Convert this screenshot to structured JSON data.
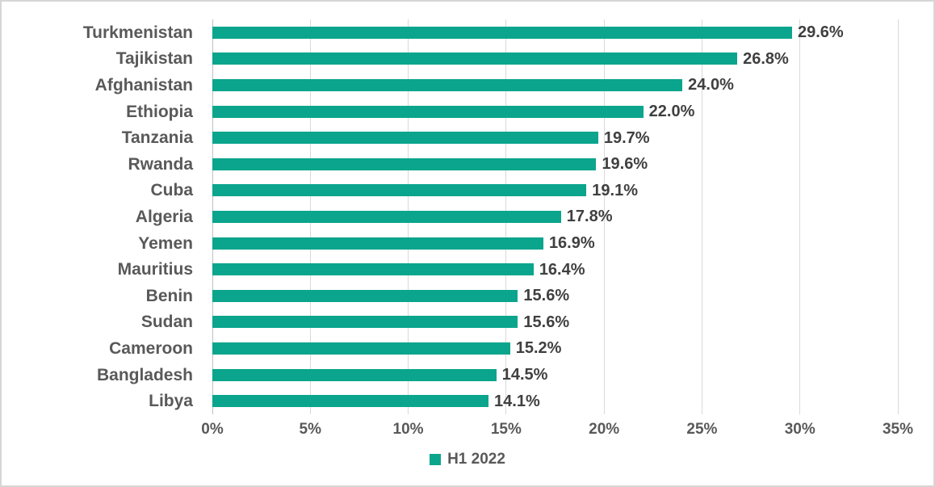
{
  "chart_data": {
    "type": "bar",
    "orientation": "horizontal",
    "title": "",
    "xlabel": "",
    "ylabel": "",
    "categories": [
      "Turkmenistan",
      "Tajikistan",
      "Afghanistan",
      "Ethiopia",
      "Tanzania",
      "Rwanda",
      "Cuba",
      "Algeria",
      "Yemen",
      "Mauritius",
      "Benin",
      "Sudan",
      "Cameroon",
      "Bangladesh",
      "Libya"
    ],
    "series": [
      {
        "name": "H1 2022",
        "values": [
          29.6,
          26.8,
          24.0,
          22.0,
          19.7,
          19.6,
          19.1,
          17.8,
          16.9,
          16.4,
          15.6,
          15.6,
          15.2,
          14.5,
          14.1
        ],
        "value_labels": [
          "29.6%",
          "26.8%",
          "24.0%",
          "22.0%",
          "19.7%",
          "19.6%",
          "19.1%",
          "17.8%",
          "16.9%",
          "16.4%",
          "15.6%",
          "15.6%",
          "15.2%",
          "14.5%",
          "14.1%"
        ]
      }
    ],
    "xlim": [
      0,
      35
    ],
    "x_tick_values": [
      0,
      5,
      10,
      15,
      20,
      25,
      30,
      35
    ],
    "x_tick_labels": [
      "0%",
      "5%",
      "10%",
      "15%",
      "20%",
      "25%",
      "30%",
      "35%"
    ],
    "grid": true,
    "legend_position": "bottom",
    "colors": {
      "bar": "#0aa58c",
      "gridline": "#d9d9d9",
      "axis_line": "#bfbfbf",
      "value_label": "#404040",
      "category_label": "#595959",
      "tick_label": "#595959",
      "legend_text": "#595959",
      "frame_border": "#d6d6d6"
    }
  },
  "legend": {
    "label": "H1 2022"
  }
}
